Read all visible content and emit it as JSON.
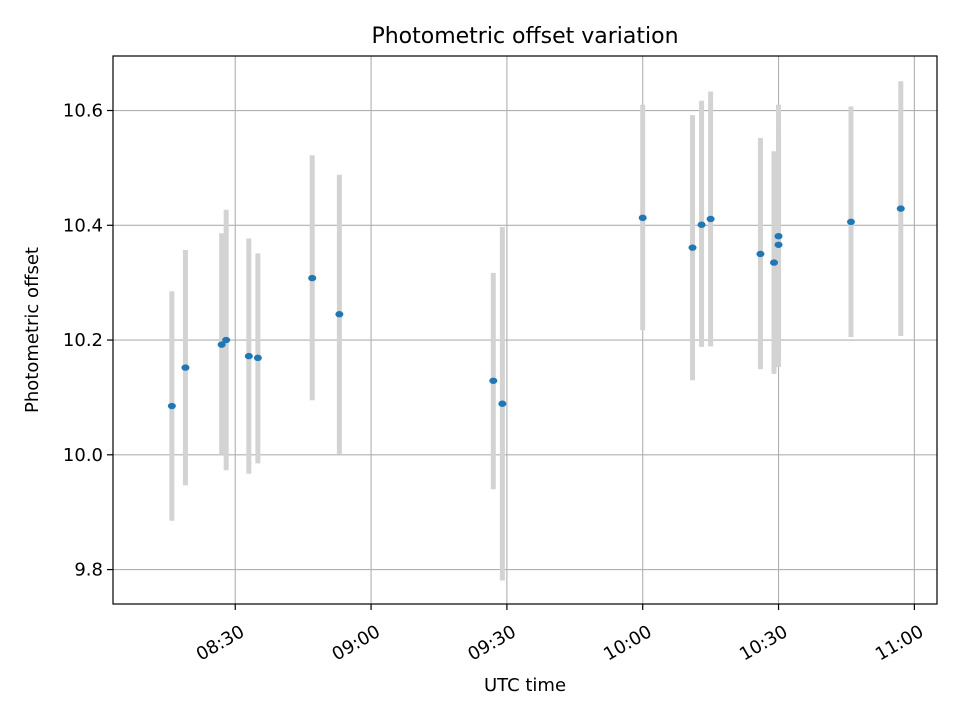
{
  "chart_data": {
    "type": "scatter",
    "title": "Photometric offset variation",
    "xlabel": "UTC time",
    "ylabel": "Photometric offset",
    "x_axis_kind": "time",
    "xlim": [
      "08:03",
      "11:05"
    ],
    "ylim": [
      9.74,
      10.695
    ],
    "x_ticks": [
      "08:30",
      "09:00",
      "09:30",
      "10:00",
      "10:30",
      "11:00"
    ],
    "y_ticks": [
      9.8,
      10.0,
      10.2,
      10.4,
      10.6
    ],
    "y_tick_labels": [
      "9.8",
      "10.0",
      "10.2",
      "10.4",
      "10.6"
    ],
    "grid": true,
    "series": [
      {
        "marker_color": "#1f77b4",
        "errorbar_color": "#d3d3d3",
        "points": [
          {
            "x": "08:16",
            "y": 10.085,
            "yerr_low": 9.885,
            "yerr_high": 10.285
          },
          {
            "x": "08:19",
            "y": 10.152,
            "yerr_low": 9.947,
            "yerr_high": 10.357
          },
          {
            "x": "08:27",
            "y": 10.192,
            "yerr_low": 10.0,
            "yerr_high": 10.386
          },
          {
            "x": "08:28",
            "y": 10.2,
            "yerr_low": 9.973,
            "yerr_high": 10.427
          },
          {
            "x": "08:33",
            "y": 10.172,
            "yerr_low": 9.967,
            "yerr_high": 10.377
          },
          {
            "x": "08:35",
            "y": 10.169,
            "yerr_low": 9.985,
            "yerr_high": 10.351
          },
          {
            "x": "08:47",
            "y": 10.308,
            "yerr_low": 10.095,
            "yerr_high": 10.522
          },
          {
            "x": "08:53",
            "y": 10.245,
            "yerr_low": 10.0,
            "yerr_high": 10.488
          },
          {
            "x": "09:27",
            "y": 10.129,
            "yerr_low": 9.94,
            "yerr_high": 10.317
          },
          {
            "x": "09:29",
            "y": 10.089,
            "yerr_low": 9.781,
            "yerr_high": 10.397
          },
          {
            "x": "10:00",
            "y": 10.413,
            "yerr_low": 10.217,
            "yerr_high": 10.61
          },
          {
            "x": "10:11",
            "y": 10.361,
            "yerr_low": 10.13,
            "yerr_high": 10.592
          },
          {
            "x": "10:13",
            "y": 10.401,
            "yerr_low": 10.188,
            "yerr_high": 10.617
          },
          {
            "x": "10:15",
            "y": 10.411,
            "yerr_low": 10.189,
            "yerr_high": 10.633
          },
          {
            "x": "10:26",
            "y": 10.35,
            "yerr_low": 10.149,
            "yerr_high": 10.552
          },
          {
            "x": "10:29",
            "y": 10.335,
            "yerr_low": 10.141,
            "yerr_high": 10.529
          },
          {
            "x": "10:30",
            "y": 10.381,
            "yerr_low": 10.153,
            "yerr_high": 10.61
          },
          {
            "x": "10:30",
            "y": 10.366,
            "yerr_low": 10.169,
            "yerr_high": 10.563
          },
          {
            "x": "10:46",
            "y": 10.406,
            "yerr_low": 10.205,
            "yerr_high": 10.607
          },
          {
            "x": "10:57",
            "y": 10.429,
            "yerr_low": 10.207,
            "yerr_high": 10.651
          }
        ]
      }
    ]
  }
}
